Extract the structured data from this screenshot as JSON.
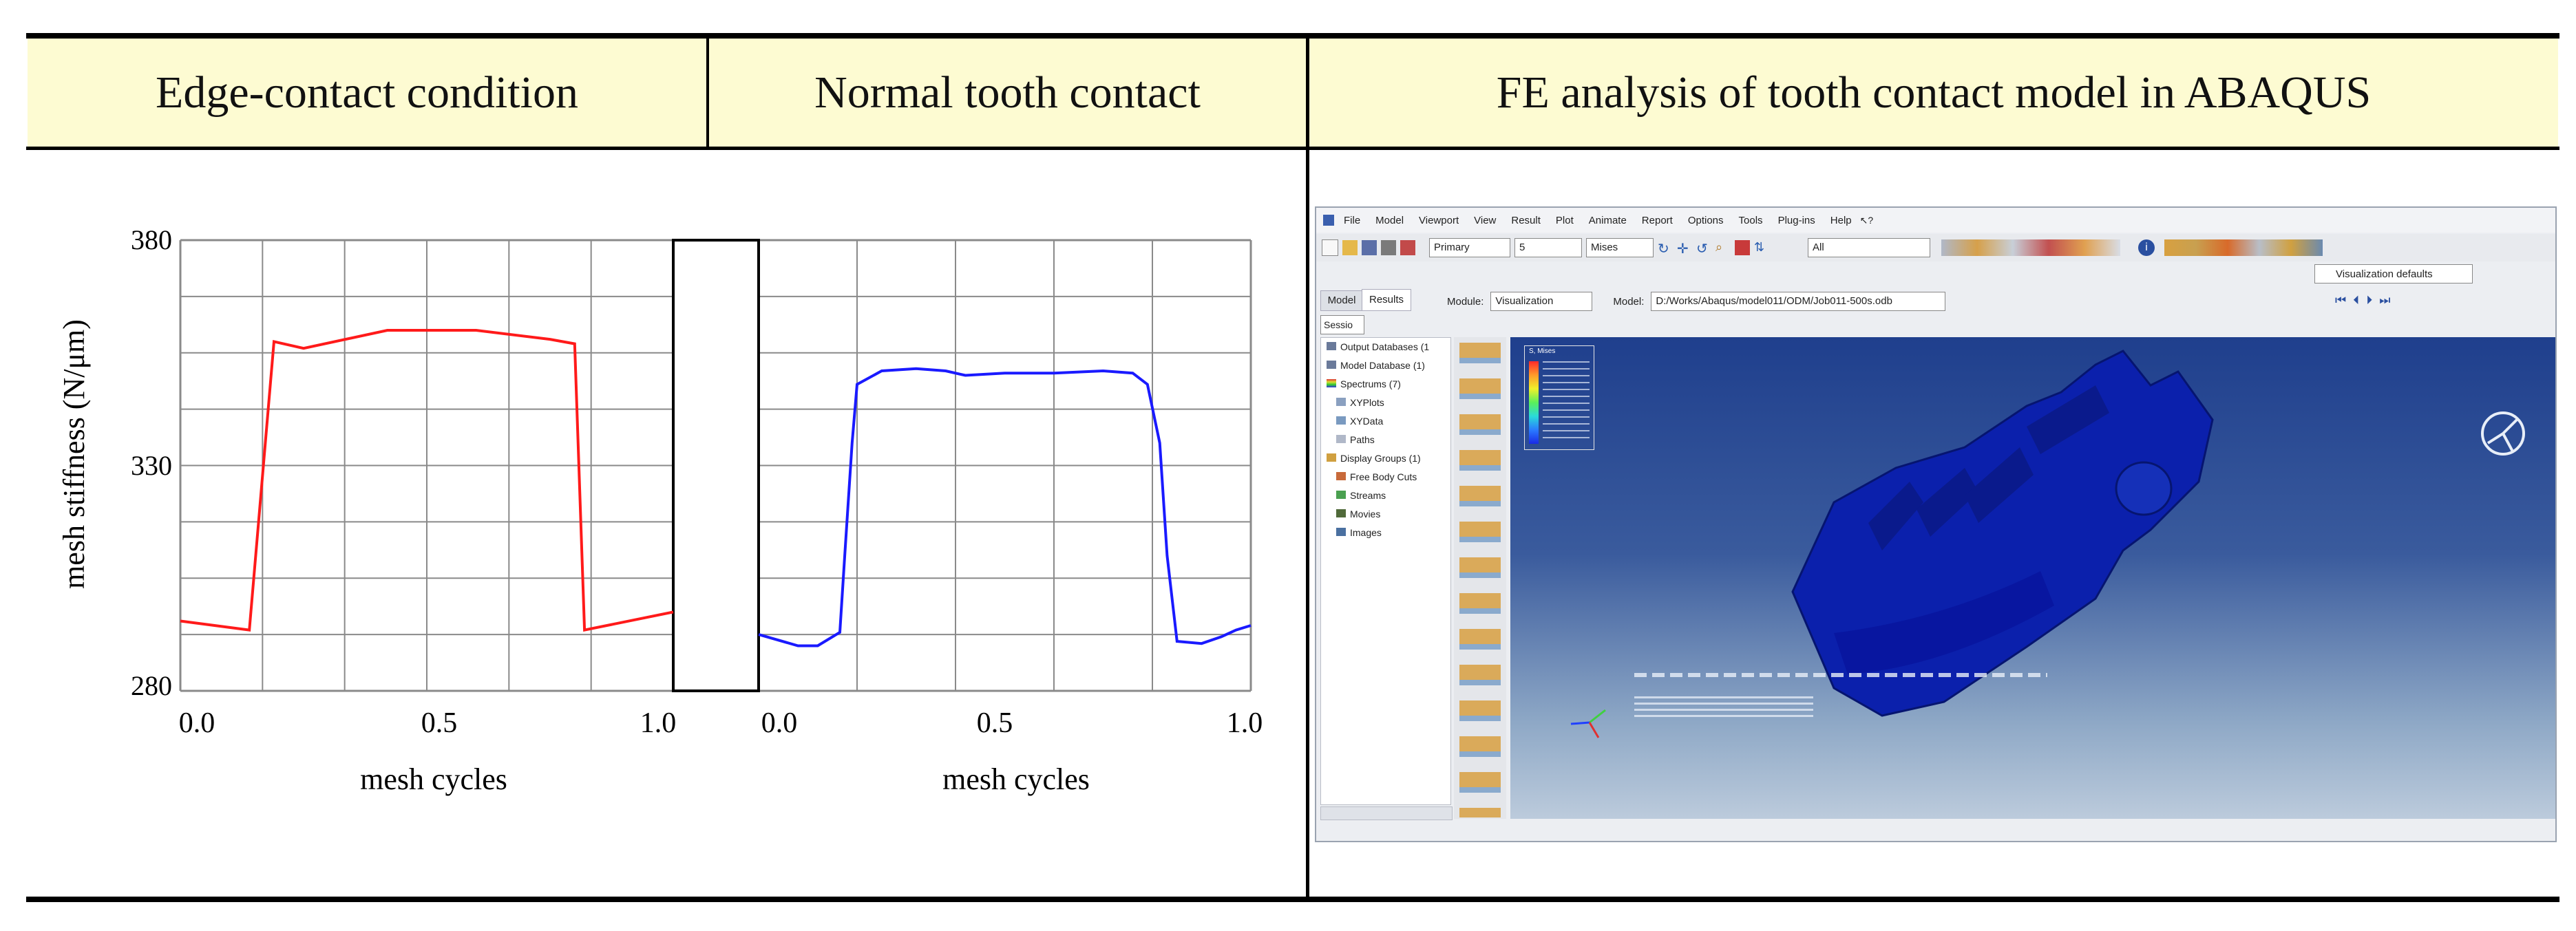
{
  "headers": {
    "col1": "Edge-contact condition",
    "col2": "Normal tooth contact",
    "col3": "FE analysis of tooth contact model in ABAQUS"
  },
  "colors": {
    "header_bg": "#fdfbd2",
    "edge_line": "#ff1a1a",
    "normal_line": "#1a1aff",
    "viewport_top": "#26458f",
    "viewport_bottom": "#b9c9da",
    "gear": "#0a1fa8"
  },
  "chart_data": [
    {
      "type": "line",
      "title": "",
      "xlabel": "mesh cycles",
      "ylabel": "mesh stiffness (N/μm)",
      "xlim": [
        0.0,
        1.0
      ],
      "ylim": [
        280,
        380
      ],
      "x_ticks": [
        "0.0",
        "0.5",
        "1.0"
      ],
      "y_ticks": [
        "380",
        "330",
        "280"
      ],
      "grid": true,
      "series": [
        {
          "color": "#ff1a1a",
          "x": [
            0.0,
            0.14,
            0.19,
            0.25,
            0.42,
            0.6,
            0.75,
            0.8,
            0.82,
            1.0
          ],
          "y": [
            295.5,
            293.5,
            357.5,
            356.0,
            360.0,
            360.0,
            358.0,
            357.0,
            293.5,
            297.5
          ]
        }
      ]
    },
    {
      "type": "line",
      "title": "",
      "xlabel": "mesh cycles",
      "ylabel": "",
      "xlim": [
        0.0,
        1.0
      ],
      "ylim": [
        280,
        380
      ],
      "x_ticks": [
        "0.0",
        "0.5",
        "1.0"
      ],
      "y_ticks": [],
      "grid": true,
      "series": [
        {
          "color": "#1a1aff",
          "x": [
            0.0,
            0.08,
            0.12,
            0.165,
            0.175,
            0.19,
            0.2,
            0.25,
            0.32,
            0.38,
            0.42,
            0.5,
            0.6,
            0.7,
            0.76,
            0.79,
            0.815,
            0.83,
            0.85,
            0.9,
            0.94,
            0.97,
            1.0
          ],
          "y": [
            292.5,
            290.0,
            290.0,
            293.0,
            310.0,
            335.0,
            348.0,
            351.0,
            351.5,
            351.0,
            350.0,
            350.5,
            350.5,
            351.0,
            350.5,
            348.0,
            335.0,
            310.0,
            291.0,
            290.5,
            292.0,
            293.5,
            294.5
          ]
        }
      ]
    }
  ],
  "abaqus": {
    "menu": [
      "File",
      "Model",
      "Viewport",
      "View",
      "Result",
      "Plot",
      "Animate",
      "Report",
      "Options",
      "Tools",
      "Plug-ins",
      "Help"
    ],
    "toolbar": {
      "primary_select": "Primary",
      "step_select": "5",
      "variable_select": "Mises",
      "all_select": "All",
      "visualization_defaults": "Visualization defaults"
    },
    "tabs": [
      "Model",
      "Results"
    ],
    "module_label": "Module:",
    "module_value": "Visualization",
    "model_label": "Model:",
    "model_value": "D:/Works/Abaqus/model011/ODM/Job011-500s.odb",
    "session_select": "Sessio",
    "tree": [
      "Output Databases (1",
      "Model Database (1)",
      "Spectrums (7)",
      "XYPlots",
      "XYData",
      "Paths",
      "Display Groups (1)",
      "Free Body Cuts",
      "Streams",
      "Movies",
      "Images"
    ],
    "legend_title": "S, Mises"
  }
}
